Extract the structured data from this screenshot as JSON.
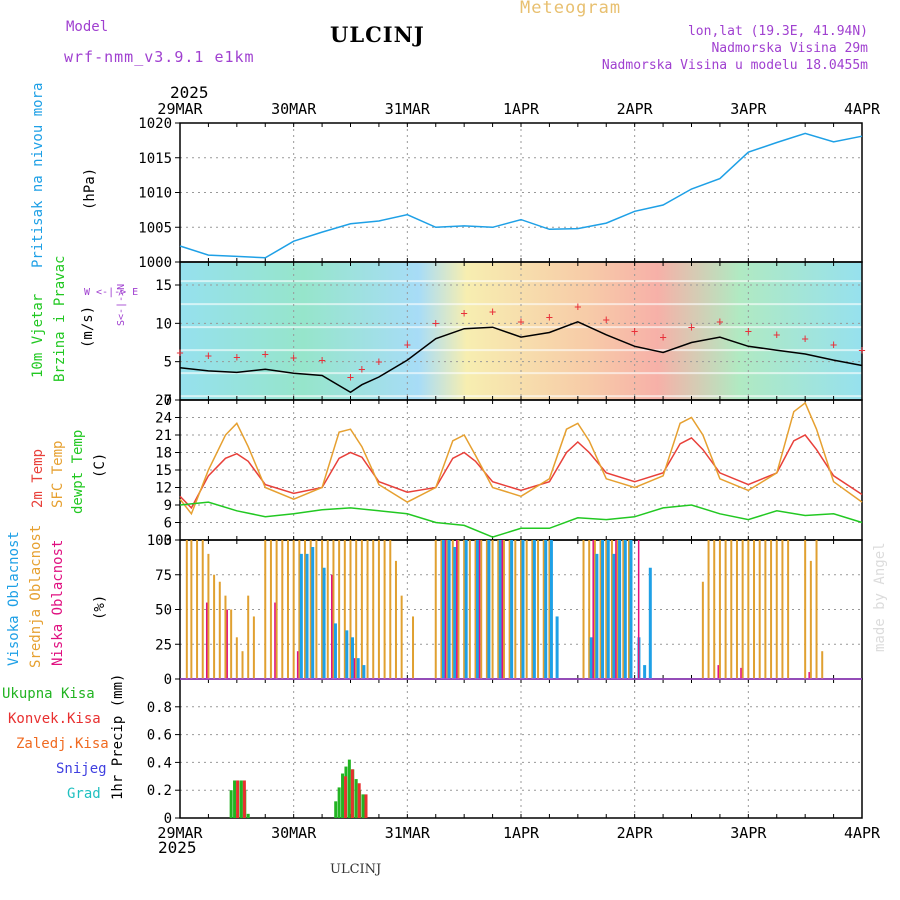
{
  "header": {
    "model_label": "Model",
    "model_name": "wrf-nmm_v3.9.1 e1km",
    "station": "ULCINJ",
    "product": "Meteogram",
    "lonlat": "lon,lat (19.3E, 41.94N)",
    "altitude": "Nadmorska Visina 29m",
    "model_altitude": "Nadmorska Visina u modelu 18.0455m"
  },
  "footer": {
    "station": "ULCINJ",
    "credit": "made by Angel"
  },
  "time_axis": {
    "year": "2025",
    "ticks": [
      "29MAR",
      "30MAR",
      "31MAR",
      "1APR",
      "2APR",
      "3APR",
      "4APR"
    ]
  },
  "panel_labels": {
    "pressure": {
      "title": "Pritisak na nivou mora",
      "unit": "(hPa)"
    },
    "wind": {
      "line1": "10m Vjetar",
      "line2": "Brzina i Pravac",
      "unit": "(m/s)",
      "legend_ew": "W <-|-> E",
      "legend_ns": "S<-|->N"
    },
    "temp": {
      "line1": "2m Temp",
      "line2": "SFC Temp",
      "line3": "dewpt Temp",
      "unit": "(C)"
    },
    "cloud": {
      "line1": "Visoka Oblacnost",
      "line2": "Srednja Oblacnost",
      "line3": "Niska Oblacnost",
      "unit": "(%)"
    },
    "precip": {
      "items": [
        "Ukupna Kisa",
        "Konvek.Kisa",
        "Zaledj.Kisa",
        "Snijeg",
        "Grad"
      ],
      "unit": "1hr Precip (mm)"
    }
  },
  "colors": {
    "pressure": "#1ea0e6",
    "wind_speed": "#000000",
    "gust": "#e8303a",
    "temp2m": "#e8403a",
    "sfc_temp": "#e6a030",
    "dewpt": "#22c822",
    "high_cloud": "#1ea0e6",
    "mid_cloud": "#e0a030",
    "low_cloud": "#e01080",
    "rain_total": "#22b422",
    "rain_conv": "#e83030",
    "rain_frz": "#f06a20",
    "snow": "#4040e0",
    "hail": "#20c0c0"
  },
  "chart_data": [
    {
      "type": "line",
      "title": "Pritisak na nivou mora",
      "ylabel": "(hPa)",
      "ylim": [
        1000,
        1020
      ],
      "yticks": [
        "1000",
        "1005",
        "1010",
        "1015",
        "1020"
      ],
      "series": [
        {
          "name": "Pritisak na nivou mora",
          "x": [
            0,
            0.25,
            0.5,
            0.75,
            1.0,
            1.25,
            1.5,
            1.75,
            2.0,
            2.25,
            2.5,
            2.75,
            3.0,
            3.25,
            3.5,
            3.75,
            4.0,
            4.25,
            4.5,
            4.75,
            5.0,
            5.25,
            5.5,
            5.75,
            6.0
          ],
          "values": [
            1002.3,
            1001.0,
            1000.8,
            1000.6,
            1003.0,
            1004.3,
            1005.5,
            1005.9,
            1006.8,
            1005.0,
            1005.2,
            1005.0,
            1006.1,
            1004.7,
            1004.8,
            1005.6,
            1007.3,
            1008.2,
            1010.5,
            1012.0,
            1015.8,
            1017.2,
            1018.5,
            1017.3,
            1018.1
          ]
        }
      ]
    },
    {
      "type": "line",
      "title": "10m Vjetar Brzina i Pravac",
      "ylabel": "(m/s)",
      "ylim": [
        0,
        18
      ],
      "yticks": [
        "0",
        "5",
        "10",
        "15"
      ],
      "series": [
        {
          "name": "Brzina",
          "x": [
            0,
            0.25,
            0.5,
            0.75,
            1.0,
            1.25,
            1.5,
            1.6,
            1.75,
            2.0,
            2.25,
            2.5,
            2.75,
            3.0,
            3.25,
            3.5,
            3.75,
            4.0,
            4.25,
            4.5,
            4.75,
            5.0,
            5.25,
            5.5,
            5.75,
            6.0
          ],
          "values": [
            4.2,
            3.8,
            3.6,
            4.0,
            3.5,
            3.2,
            1.0,
            2.0,
            3.0,
            5.2,
            8.0,
            9.3,
            9.5,
            8.2,
            8.8,
            10.2,
            8.5,
            7.0,
            6.2,
            7.5,
            8.2,
            7.0,
            6.5,
            6.0,
            5.2,
            4.5
          ]
        }
      ]
    },
    {
      "type": "line",
      "title": "2m Temp / SFC Temp / dewpt Temp",
      "ylabel": "(C)",
      "ylim": [
        3,
        27
      ],
      "yticks": [
        "3",
        "6",
        "9",
        "12",
        "15",
        "18",
        "21",
        "24",
        "27"
      ],
      "series": [
        {
          "name": "2m Temp",
          "x": [
            0,
            0.1,
            0.25,
            0.4,
            0.5,
            0.6,
            0.75,
            1.0,
            1.25,
            1.4,
            1.5,
            1.6,
            1.75,
            2.0,
            2.25,
            2.4,
            2.5,
            2.6,
            2.75,
            3.0,
            3.25,
            3.4,
            3.5,
            3.6,
            3.75,
            4.0,
            4.25,
            4.4,
            4.5,
            4.6,
            4.75,
            5.0,
            5.25,
            5.4,
            5.5,
            5.6,
            5.75,
            6.0
          ],
          "values": [
            10.5,
            8.5,
            14.0,
            17.0,
            17.8,
            16.5,
            12.5,
            11.0,
            12.0,
            17.0,
            18.0,
            17.2,
            13.0,
            11.2,
            12.0,
            17.0,
            18.0,
            16.5,
            13.0,
            11.5,
            13.0,
            18.0,
            19.8,
            18.0,
            14.5,
            13.0,
            14.5,
            19.5,
            20.5,
            18.5,
            14.5,
            12.5,
            14.5,
            20.0,
            21.0,
            18.5,
            14.0,
            10.8
          ]
        },
        {
          "name": "SFC Temp",
          "x": [
            0,
            0.1,
            0.25,
            0.4,
            0.5,
            0.6,
            0.75,
            1.0,
            1.25,
            1.4,
            1.5,
            1.6,
            1.75,
            2.0,
            2.25,
            2.4,
            2.5,
            2.6,
            2.75,
            3.0,
            3.25,
            3.4,
            3.5,
            3.6,
            3.75,
            4.0,
            4.25,
            4.4,
            4.5,
            4.6,
            4.75,
            5.0,
            5.25,
            5.4,
            5.5,
            5.6,
            5.75,
            6.0
          ],
          "values": [
            10.0,
            7.5,
            15.0,
            21.0,
            23.0,
            19.0,
            12.0,
            10.0,
            12.0,
            21.5,
            22.0,
            19.0,
            12.5,
            9.5,
            12.0,
            20.0,
            21.0,
            17.5,
            12.0,
            10.5,
            13.5,
            22.0,
            23.0,
            20.0,
            13.5,
            12.0,
            14.0,
            23.0,
            24.0,
            21.0,
            13.5,
            11.5,
            14.5,
            25.0,
            26.5,
            22.0,
            13.0,
            9.5
          ]
        },
        {
          "name": "dewpt Temp",
          "x": [
            0,
            0.25,
            0.5,
            0.75,
            1.0,
            1.25,
            1.5,
            1.75,
            2.0,
            2.25,
            2.5,
            2.75,
            3.0,
            3.25,
            3.5,
            3.75,
            4.0,
            4.25,
            4.5,
            4.75,
            5.0,
            5.25,
            5.5,
            5.75,
            6.0
          ],
          "values": [
            9.0,
            9.5,
            8.0,
            7.0,
            7.5,
            8.2,
            8.5,
            8.0,
            7.5,
            6.0,
            5.5,
            3.5,
            5.0,
            5.0,
            6.8,
            6.5,
            7.0,
            8.5,
            9.0,
            7.5,
            6.5,
            8.0,
            7.2,
            7.5,
            6.0
          ]
        }
      ]
    },
    {
      "type": "bar",
      "title": "Visoka / Srednja / Niska Oblacnost",
      "ylabel": "(%)",
      "ylim": [
        0,
        100
      ],
      "yticks": [
        "0",
        "25",
        "50",
        "75",
        "100"
      ],
      "series": [
        {
          "name": "Srednja Oblacnost",
          "x": [
            0.06,
            0.1,
            0.15,
            0.2,
            0.25,
            0.3,
            0.35,
            0.4,
            0.45,
            0.5,
            0.55,
            0.6,
            0.65,
            0.75,
            0.8,
            0.85,
            0.9,
            0.95,
            1.0,
            1.05,
            1.1,
            1.15,
            1.2,
            1.25,
            1.3,
            1.35,
            1.4,
            1.45,
            1.5,
            1.55,
            1.6,
            1.65,
            1.7,
            1.75,
            1.8,
            1.85,
            1.9,
            1.95,
            2.05,
            2.25,
            2.3,
            2.35,
            2.4,
            2.45,
            2.5,
            2.55,
            2.6,
            2.65,
            2.7,
            2.75,
            2.8,
            2.85,
            2.9,
            2.95,
            3.0,
            3.05,
            3.1,
            3.15,
            3.2,
            3.25,
            3.55,
            3.6,
            3.65,
            3.7,
            3.75,
            3.8,
            3.85,
            3.9,
            3.95,
            4.6,
            4.65,
            4.7,
            4.75,
            4.8,
            4.85,
            4.9,
            4.95,
            5.0,
            5.05,
            5.1,
            5.15,
            5.2,
            5.25,
            5.3,
            5.35,
            5.5,
            5.55,
            5.6,
            5.65
          ],
          "values": [
            100,
            100,
            100,
            100,
            90,
            75,
            70,
            60,
            50,
            30,
            20,
            60,
            45,
            100,
            100,
            100,
            100,
            100,
            100,
            100,
            100,
            100,
            100,
            100,
            100,
            100,
            100,
            100,
            100,
            100,
            100,
            100,
            100,
            100,
            100,
            100,
            85,
            60,
            45,
            100,
            100,
            100,
            100,
            100,
            100,
            100,
            100,
            100,
            100,
            100,
            100,
            100,
            100,
            100,
            100,
            100,
            100,
            100,
            100,
            100,
            100,
            100,
            100,
            100,
            100,
            100,
            100,
            100,
            100,
            70,
            100,
            100,
            100,
            100,
            100,
            100,
            100,
            100,
            100,
            100,
            100,
            100,
            100,
            100,
            100,
            100,
            85,
            100,
            20
          ]
        },
        {
          "name": "Visoka Oblacnost",
          "x": [
            1.05,
            1.1,
            1.15,
            1.25,
            1.35,
            1.45,
            1.5,
            1.55,
            1.6,
            2.3,
            2.35,
            2.4,
            2.5,
            2.6,
            2.7,
            2.8,
            2.9,
            3.0,
            3.1,
            3.2,
            3.25,
            3.3,
            3.6,
            3.65,
            3.7,
            3.75,
            3.8,
            3.85,
            3.9,
            3.95,
            4.02,
            4.07,
            4.12
          ],
          "values": [
            90,
            90,
            95,
            80,
            40,
            35,
            30,
            15,
            10,
            100,
            100,
            95,
            100,
            100,
            100,
            100,
            100,
            100,
            100,
            100,
            100,
            45,
            30,
            90,
            100,
            100,
            90,
            100,
            100,
            100,
            30,
            10,
            80
          ]
        },
        {
          "name": "Niska Oblacnost",
          "x": [
            0.2,
            0.38,
            0.8,
            1.0,
            1.3,
            1.5,
            2.3,
            2.4,
            2.6,
            2.8,
            3.6,
            3.8,
            4.0,
            4.7,
            4.9,
            5.5
          ],
          "values": [
            55,
            50,
            55,
            20,
            75,
            15,
            100,
            100,
            100,
            100,
            100,
            100,
            100,
            10,
            8,
            5
          ]
        }
      ]
    },
    {
      "type": "bar",
      "title": "1hr Precip",
      "ylabel": "1hr Precip (mm)",
      "ylim": [
        0,
        1.0
      ],
      "yticks": [
        "0",
        "0.2",
        "0.4",
        "0.6",
        "0.8"
      ],
      "series": [
        {
          "name": "Ukupna Kisa",
          "x": [
            0.45,
            0.48,
            0.51,
            0.54,
            0.57,
            0.6,
            1.37,
            1.4,
            1.43,
            1.46,
            1.49,
            1.52,
            1.55,
            1.58,
            1.61
          ],
          "values": [
            0.2,
            0.27,
            0.27,
            0.27,
            0.2,
            0.03,
            0.12,
            0.22,
            0.32,
            0.37,
            0.42,
            0.35,
            0.28,
            0.2,
            0.17
          ]
        },
        {
          "name": "Konvek.Kisa",
          "x": [
            0.48,
            0.54,
            1.43,
            1.49,
            1.55,
            1.61
          ],
          "values": [
            0.27,
            0.27,
            0.3,
            0.35,
            0.25,
            0.17
          ]
        }
      ]
    }
  ]
}
